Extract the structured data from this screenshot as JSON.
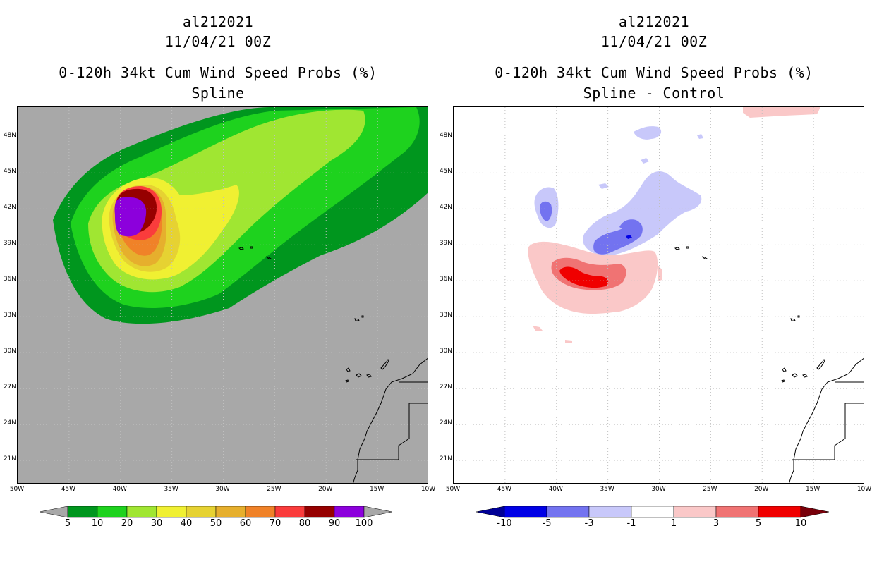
{
  "left_panel": {
    "storm_id": "al212021",
    "datetime": "11/04/21 00Z",
    "product_title": "0-120h 34kt Cum Wind Speed Probs (%)",
    "subtitle": "Spline",
    "colorbar": {
      "labels": [
        "5",
        "10",
        "20",
        "30",
        "40",
        "50",
        "60",
        "70",
        "80",
        "90",
        "100"
      ],
      "colors": [
        "#00961e",
        "#1ed21e",
        "#a0e632",
        "#f0f032",
        "#e6d232",
        "#e6af2d",
        "#f08228",
        "#fa3c3c",
        "#960000",
        "#8c00dc"
      ],
      "under_color": "#a8a8a8",
      "over_color": "#a8a8a8"
    },
    "background_color": "#a8a8a8"
  },
  "right_panel": {
    "storm_id": "al212021",
    "datetime": "11/04/21 00Z",
    "product_title": "0-120h 34kt Cum Wind Speed Probs (%)",
    "subtitle": "Spline - Control",
    "colorbar": {
      "labels": [
        "-10",
        "-5",
        "-3",
        "-1",
        "1",
        "3",
        "5",
        "10"
      ],
      "colors": [
        "#0000e6",
        "#7373f0",
        "#c8c8fa",
        "#ffffff",
        "#fac8c8",
        "#f07373",
        "#f00000"
      ],
      "under_color": "#000096",
      "over_color": "#78000a"
    }
  },
  "map": {
    "lat_labels": [
      "48N",
      "45N",
      "42N",
      "39N",
      "36N",
      "33N",
      "30N",
      "27N",
      "24N",
      "21N"
    ],
    "lon_labels": [
      "50W",
      "45W",
      "40W",
      "35W",
      "30W",
      "25W",
      "20W",
      "15W",
      "10W"
    ],
    "lat_values": [
      48,
      45,
      42,
      39,
      36,
      33,
      30,
      27,
      24,
      21
    ],
    "lon_values": [
      -50,
      -45,
      -40,
      -35,
      -30,
      -25,
      -20,
      -15,
      -10
    ],
    "lat_range": [
      19,
      50.5
    ],
    "lon_range": [
      -50,
      -10
    ],
    "gridline_style": "dotted"
  }
}
